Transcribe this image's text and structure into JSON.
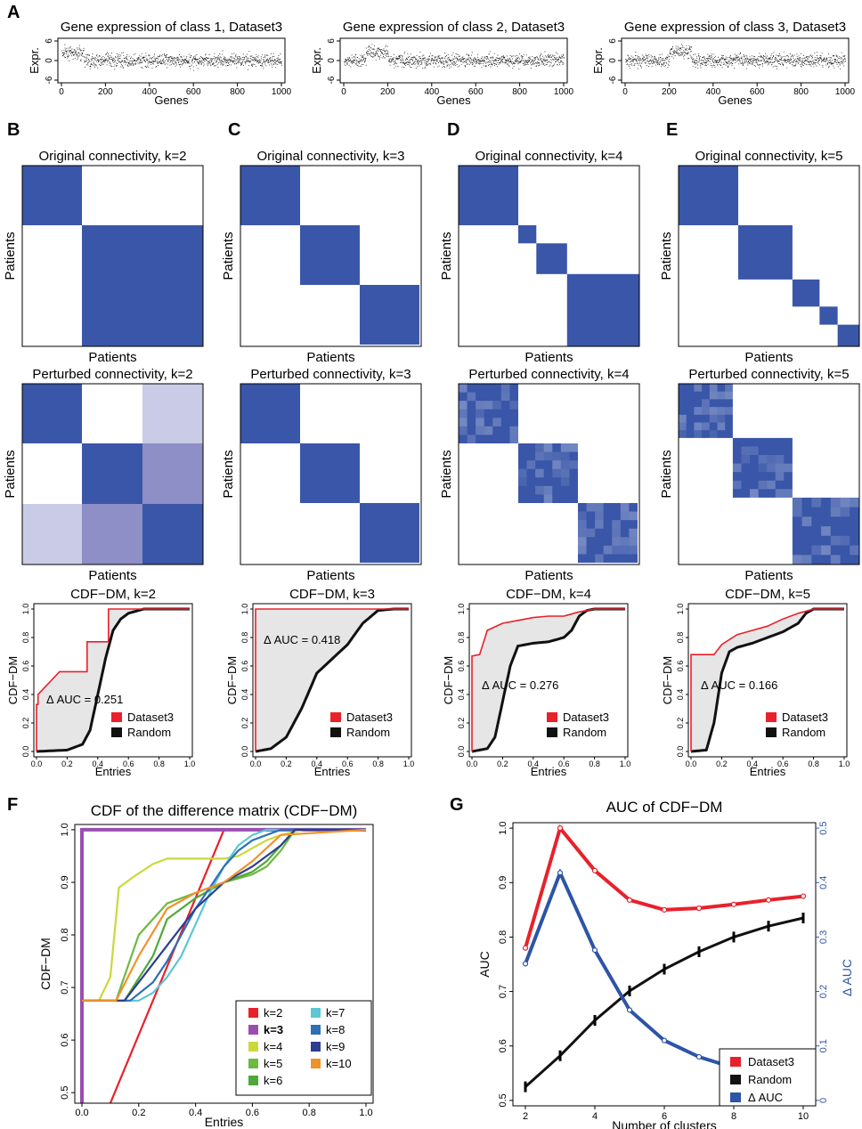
{
  "colors": {
    "heat": "#3956a8",
    "dataset": "#e8212b",
    "random": "#111111",
    "delta": "#2d54a6",
    "fill": "#e6e6e6"
  },
  "panels": {
    "a": {
      "label": "A",
      "xlabel": "Genes",
      "ylabel": "Expr.",
      "titles": [
        "Gene expression of class 1, Dataset3",
        "Gene expression of class 2, Dataset3",
        "Gene expression of class 3, Dataset3"
      ],
      "xticks": [
        "0",
        "200",
        "400",
        "600",
        "800",
        "1000"
      ],
      "yticks": [
        "-6",
        "0",
        "6"
      ]
    },
    "heat": {
      "labels": [
        "B",
        "C",
        "D",
        "E"
      ],
      "orig_titles": [
        "Original connectivity, k=2",
        "Original connectivity, k=3",
        "Original connectivity, k=4",
        "Original connectivity, k=5"
      ],
      "pert_titles": [
        "Perturbed connectivity, k=2",
        "Perturbed connectivity, k=3",
        "Perturbed connectivity, k=4",
        "Perturbed connectivity, k=5"
      ],
      "axis_label": "Patients"
    },
    "cdf": {
      "titles": [
        "CDF−DM, k=2",
        "CDF−DM, k=3",
        "CDF−DM, k=4",
        "CDF−DM, k=5"
      ],
      "auc": [
        "Δ AUC = 0.251",
        "Δ AUC = 0.418",
        "Δ AUC = 0.276",
        "Δ AUC = 0.166"
      ],
      "ylabel": "CDF−DM",
      "xlabel": "Entries",
      "legend": [
        "Dataset3",
        "Random"
      ],
      "xticks": [
        "0.0",
        "0.2",
        "0.4",
        "0.6",
        "0.8",
        "1.0"
      ],
      "yticks": [
        "0.0",
        "0.2",
        "0.4",
        "0.6",
        "0.8",
        "1.0"
      ]
    },
    "f": {
      "label": "F",
      "title": "CDF of the difference matrix (CDF−DM)",
      "xlabel": "Entries",
      "ylabel": "CDF−DM",
      "xticks": [
        "0.0",
        "0.2",
        "0.4",
        "0.6",
        "0.8",
        "1.0"
      ],
      "yticks": [
        "0.5",
        "0.6",
        "0.7",
        "0.8",
        "0.9",
        "1.0"
      ]
    },
    "g": {
      "label": "G",
      "title": "AUC of CDF−DM",
      "xlabel": "Number of clusters",
      "ylabel": "AUC",
      "y2label": "Δ AUC",
      "xticks": [
        "2",
        "4",
        "6",
        "8",
        "10"
      ],
      "yticks": [
        "0.5",
        "0.6",
        "0.7",
        "0.8",
        "0.9",
        "1.0"
      ],
      "y2ticks": [
        "0",
        "0.1",
        "0.2",
        "0.3",
        "0.4",
        "0.5"
      ],
      "legend": [
        "Dataset3",
        "Random",
        "Δ AUC"
      ]
    }
  },
  "chart_data": [
    {
      "type": "scatter",
      "panel": "A1",
      "title": "Gene expression of class 1, Dataset3",
      "xlabel": "Genes",
      "ylabel": "Expr.",
      "xlim": [
        0,
        1000
      ],
      "ylim": [
        -6,
        6
      ],
      "note_blocks": [
        {
          "genes": [
            1,
            100
          ],
          "mean": 2.5
        },
        {
          "genes": [
            101,
            1000
          ],
          "mean": 0
        }
      ]
    },
    {
      "type": "scatter",
      "panel": "A2",
      "title": "Gene expression of class 2, Dataset3",
      "xlabel": "Genes",
      "ylabel": "Expr.",
      "xlim": [
        0,
        1000
      ],
      "ylim": [
        -6,
        6
      ],
      "note_blocks": [
        {
          "genes": [
            1,
            100
          ],
          "mean": 0
        },
        {
          "genes": [
            101,
            200
          ],
          "mean": 2.5
        },
        {
          "genes": [
            201,
            1000
          ],
          "mean": 0
        }
      ]
    },
    {
      "type": "scatter",
      "panel": "A3",
      "title": "Gene expression of class 3, Dataset3",
      "xlabel": "Genes",
      "ylabel": "Expr.",
      "xlim": [
        0,
        1000
      ],
      "ylim": [
        -6,
        6
      ],
      "note_blocks": [
        {
          "genes": [
            1,
            200
          ],
          "mean": 0
        },
        {
          "genes": [
            201,
            300
          ],
          "mean": 2.5
        },
        {
          "genes": [
            301,
            1000
          ],
          "mean": 0
        }
      ]
    },
    {
      "type": "heatmap",
      "panel": "B-E original",
      "blocks": [
        [
          0.33,
          0.67
        ],
        [
          0.33,
          0.33,
          0.33
        ],
        [
          0.33,
          0.1,
          0.17,
          0.4
        ],
        [
          0.33,
          0.3,
          0.15,
          0.1,
          0.12
        ]
      ]
    },
    {
      "type": "heatmap",
      "panel": "B-E perturbed",
      "k": [
        2,
        3,
        4,
        5
      ]
    },
    {
      "type": "line",
      "panel": "CDF k=2",
      "title": "CDF−DM, k=2",
      "xlim": [
        0,
        1
      ],
      "ylim": [
        0,
        1
      ],
      "delta_auc": 0.251,
      "series": [
        {
          "name": "Dataset3",
          "x": [
            0,
            0,
            0.01,
            0.01,
            0.15,
            0.15,
            0.33,
            0.33,
            0.47,
            0.47,
            1
          ],
          "y": [
            0,
            0.33,
            0.33,
            0.4,
            0.56,
            0.56,
            0.56,
            0.77,
            0.77,
            1,
            1
          ]
        },
        {
          "name": "Random",
          "x": [
            0,
            0.2,
            0.3,
            0.35,
            0.4,
            0.45,
            0.5,
            0.55,
            0.6,
            0.7,
            1
          ],
          "y": [
            0,
            0.01,
            0.05,
            0.15,
            0.4,
            0.65,
            0.85,
            0.93,
            0.97,
            1,
            1
          ]
        }
      ]
    },
    {
      "type": "line",
      "panel": "CDF k=3",
      "title": "CDF−DM, k=3",
      "xlim": [
        0,
        1
      ],
      "ylim": [
        0,
        1
      ],
      "delta_auc": 0.418,
      "series": [
        {
          "name": "Dataset3",
          "x": [
            0,
            0,
            0.01,
            1
          ],
          "y": [
            0,
            1,
            1,
            1
          ]
        },
        {
          "name": "Random",
          "x": [
            0,
            0.1,
            0.2,
            0.3,
            0.4,
            0.5,
            0.6,
            0.7,
            0.8,
            0.9,
            1
          ],
          "y": [
            0,
            0.02,
            0.1,
            0.3,
            0.55,
            0.65,
            0.75,
            0.9,
            0.99,
            1,
            1
          ]
        }
      ]
    },
    {
      "type": "line",
      "panel": "CDF k=4",
      "title": "CDF−DM, k=4",
      "xlim": [
        0,
        1
      ],
      "ylim": [
        0,
        1
      ],
      "delta_auc": 0.276,
      "series": [
        {
          "name": "Dataset3",
          "x": [
            0,
            0,
            0.05,
            0.1,
            0.2,
            0.3,
            0.4,
            0.5,
            0.6,
            0.7,
            0.8,
            1
          ],
          "y": [
            0,
            0.67,
            0.68,
            0.85,
            0.9,
            0.92,
            0.94,
            0.95,
            0.95,
            0.98,
            1,
            1
          ]
        },
        {
          "name": "Random",
          "x": [
            0,
            0.1,
            0.15,
            0.2,
            0.25,
            0.3,
            0.4,
            0.5,
            0.6,
            0.65,
            0.7,
            0.75,
            0.8,
            1
          ],
          "y": [
            0,
            0.02,
            0.1,
            0.35,
            0.6,
            0.74,
            0.76,
            0.77,
            0.8,
            0.85,
            0.95,
            0.99,
            1,
            1
          ]
        }
      ]
    },
    {
      "type": "line",
      "panel": "CDF k=5",
      "title": "CDF−DM, k=5",
      "xlim": [
        0,
        1
      ],
      "ylim": [
        0,
        1
      ],
      "delta_auc": 0.166,
      "series": [
        {
          "name": "Dataset3",
          "x": [
            0,
            0,
            0.15,
            0.2,
            0.3,
            0.4,
            0.5,
            0.6,
            0.7,
            0.8,
            1
          ],
          "y": [
            0,
            0.68,
            0.68,
            0.75,
            0.82,
            0.85,
            0.88,
            0.93,
            0.97,
            1,
            1
          ]
        },
        {
          "name": "Random",
          "x": [
            0,
            0.1,
            0.15,
            0.2,
            0.25,
            0.3,
            0.4,
            0.5,
            0.6,
            0.7,
            0.75,
            0.8,
            1
          ],
          "y": [
            0,
            0.01,
            0.2,
            0.55,
            0.7,
            0.73,
            0.76,
            0.8,
            0.84,
            0.9,
            0.97,
            1,
            1
          ]
        }
      ]
    },
    {
      "type": "line",
      "panel": "F",
      "title": "CDF of the difference matrix (CDF−DM)",
      "xlabel": "Entries",
      "ylabel": "CDF−DM",
      "xlim": [
        0,
        1
      ],
      "ylim": [
        0.48,
        1.01
      ],
      "legend_position": "bottom-right",
      "series": [
        {
          "name": "k=2",
          "color": "#e8212b",
          "x": [
            0.1,
            0.5
          ],
          "y": [
            0.47,
            1.0
          ]
        },
        {
          "name": "k=3",
          "color": "#9a4fb0",
          "x": [
            0,
            0,
            1
          ],
          "y": [
            0.47,
            1.0,
            1.0
          ]
        },
        {
          "name": "k=4",
          "color": "#c9d93b",
          "x": [
            0,
            0.06,
            0.1,
            0.13,
            0.18,
            0.25,
            0.3,
            0.4,
            0.5,
            0.55,
            0.6,
            0.65,
            0.7,
            0.78,
            1
          ],
          "y": [
            0.675,
            0.675,
            0.72,
            0.89,
            0.91,
            0.935,
            0.945,
            0.945,
            0.945,
            0.95,
            0.965,
            0.98,
            0.99,
            1.0,
            1.0
          ]
        },
        {
          "name": "k=5",
          "color": "#6fb842",
          "x": [
            0,
            0.12,
            0.2,
            0.3,
            0.4,
            0.5,
            0.6,
            0.65,
            0.7,
            0.75,
            1
          ],
          "y": [
            0.675,
            0.675,
            0.8,
            0.86,
            0.88,
            0.9,
            0.915,
            0.93,
            0.96,
            1.0,
            1.0
          ]
        },
        {
          "name": "k=6",
          "color": "#4fa83a",
          "x": [
            0,
            0.15,
            0.25,
            0.3,
            0.4,
            0.5,
            0.6,
            0.65,
            0.7,
            0.75,
            1
          ],
          "y": [
            0.675,
            0.675,
            0.76,
            0.83,
            0.87,
            0.9,
            0.92,
            0.94,
            0.97,
            1.0,
            1.0
          ]
        },
        {
          "name": "k=7",
          "color": "#5bc7d3",
          "x": [
            0,
            0.2,
            0.25,
            0.3,
            0.35,
            0.4,
            0.45,
            0.5,
            0.55,
            0.6,
            0.65,
            1
          ],
          "y": [
            0.675,
            0.675,
            0.69,
            0.72,
            0.76,
            0.82,
            0.88,
            0.93,
            0.97,
            0.99,
            1.0,
            1.0
          ]
        },
        {
          "name": "k=8",
          "color": "#2f6fb5",
          "x": [
            0,
            0.17,
            0.25,
            0.3,
            0.35,
            0.4,
            0.45,
            0.5,
            0.55,
            0.6,
            0.7,
            1
          ],
          "y": [
            0.675,
            0.675,
            0.71,
            0.75,
            0.8,
            0.85,
            0.89,
            0.93,
            0.96,
            0.98,
            1.0,
            1.0
          ]
        },
        {
          "name": "k=9",
          "color": "#2b3e8f",
          "x": [
            0,
            0.15,
            0.2,
            0.3,
            0.4,
            0.5,
            0.6,
            0.7,
            0.75,
            1
          ],
          "y": [
            0.675,
            0.675,
            0.71,
            0.78,
            0.85,
            0.9,
            0.93,
            0.97,
            1.0,
            1.0
          ]
        },
        {
          "name": "k=10",
          "color": "#f0922b",
          "x": [
            0,
            0.12,
            0.2,
            0.3,
            0.4,
            0.5,
            0.6,
            0.7,
            1
          ],
          "y": [
            0.675,
            0.675,
            0.76,
            0.85,
            0.88,
            0.9,
            0.94,
            0.99,
            1.0
          ]
        }
      ]
    },
    {
      "type": "line",
      "panel": "G",
      "title": "AUC of CDF−DM",
      "xlabel": "Number of clusters",
      "ylabel": "AUC",
      "y2label": "Δ AUC",
      "x": [
        2,
        3,
        4,
        5,
        6,
        7,
        8,
        9,
        10
      ],
      "ylim": [
        0.49,
        1.01
      ],
      "y2lim": [
        -0.01,
        0.51
      ],
      "legend_position": "bottom-right",
      "series": [
        {
          "name": "Dataset3",
          "axis": "left",
          "values": [
            0.78,
            1.0,
            0.922,
            0.868,
            0.85,
            0.853,
            0.86,
            0.868,
            0.875
          ]
        },
        {
          "name": "Random",
          "axis": "left",
          "values": [
            0.525,
            0.582,
            0.647,
            0.701,
            0.741,
            0.773,
            0.8,
            0.82,
            0.835
          ]
        },
        {
          "name": "Δ AUC",
          "axis": "right",
          "values": [
            0.251,
            0.418,
            0.276,
            0.166,
            0.11,
            0.08,
            0.06,
            0.048,
            0.04
          ]
        }
      ]
    }
  ]
}
